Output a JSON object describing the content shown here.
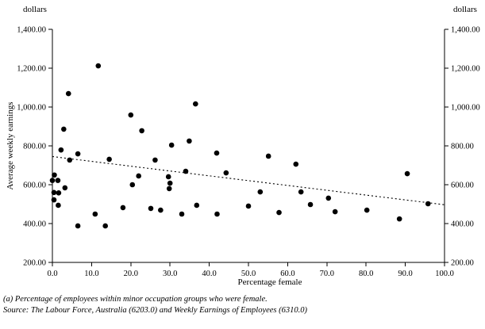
{
  "chart": {
    "left_unit": "dollars",
    "right_unit": "dollars",
    "footnote": "(a) Percentage of employees within minor occupation groups who were female.",
    "source": "Source: The Labour Force, Australia (6203.0) and Weekly Earnings of Employees (6310.0)"
  },
  "chart_data": {
    "type": "scatter",
    "title": "",
    "xlabel": "Percentage female",
    "ylabel": "Average weekly earnings",
    "unit": "dollars",
    "xlim": [
      0,
      100
    ],
    "ylim": [
      200,
      1400
    ],
    "grid": false,
    "marker_color": "#000000",
    "x_ticks": [
      0,
      10,
      20,
      30,
      40,
      50,
      60,
      70,
      80,
      90,
      100
    ],
    "x_tick_labels": [
      "0.0",
      "10.0",
      "20.0",
      "30.0",
      "40.0",
      "50.0",
      "60.0",
      "70.0",
      "80.0",
      "90.0",
      "100.0"
    ],
    "y_ticks": [
      200,
      400,
      600,
      800,
      1000,
      1200,
      1400
    ],
    "y_tick_labels": [
      "200.00",
      "400.00",
      "600.00",
      "800.00",
      "1,000.00",
      "1,200.00",
      "1,400.00"
    ],
    "points": [
      [
        0.5,
        650
      ],
      [
        0.0,
        622
      ],
      [
        1.4,
        622
      ],
      [
        3.2,
        584
      ],
      [
        0.4,
        560
      ],
      [
        1.6,
        558
      ],
      [
        0.4,
        522
      ],
      [
        1.5,
        494
      ],
      [
        2.2,
        779
      ],
      [
        2.9,
        886
      ],
      [
        4.1,
        1069
      ],
      [
        4.4,
        727
      ],
      [
        6.5,
        759
      ],
      [
        6.5,
        388
      ],
      [
        10.9,
        449
      ],
      [
        11.7,
        1212
      ],
      [
        13.5,
        388
      ],
      [
        14.5,
        731
      ],
      [
        18.0,
        482
      ],
      [
        20.0,
        959
      ],
      [
        20.4,
        600
      ],
      [
        22.0,
        645
      ],
      [
        22.8,
        878
      ],
      [
        25.1,
        478
      ],
      [
        26.2,
        727
      ],
      [
        27.6,
        469
      ],
      [
        29.6,
        641
      ],
      [
        30.0,
        608
      ],
      [
        29.8,
        580
      ],
      [
        30.4,
        804
      ],
      [
        33.0,
        449
      ],
      [
        34.0,
        669
      ],
      [
        34.9,
        825
      ],
      [
        36.5,
        1016
      ],
      [
        36.8,
        494
      ],
      [
        41.9,
        763
      ],
      [
        42.0,
        449
      ],
      [
        44.3,
        661
      ],
      [
        50.0,
        490
      ],
      [
        53.0,
        563
      ],
      [
        55.1,
        747
      ],
      [
        57.8,
        457
      ],
      [
        62.1,
        706
      ],
      [
        63.4,
        563
      ],
      [
        65.8,
        498
      ],
      [
        70.4,
        531
      ],
      [
        72.1,
        461
      ],
      [
        80.2,
        469
      ],
      [
        88.5,
        424
      ],
      [
        90.5,
        657
      ],
      [
        95.8,
        502
      ]
    ],
    "trendline": {
      "style": "dotted",
      "points": [
        [
          0,
          745
        ],
        [
          100,
          497
        ]
      ]
    }
  }
}
